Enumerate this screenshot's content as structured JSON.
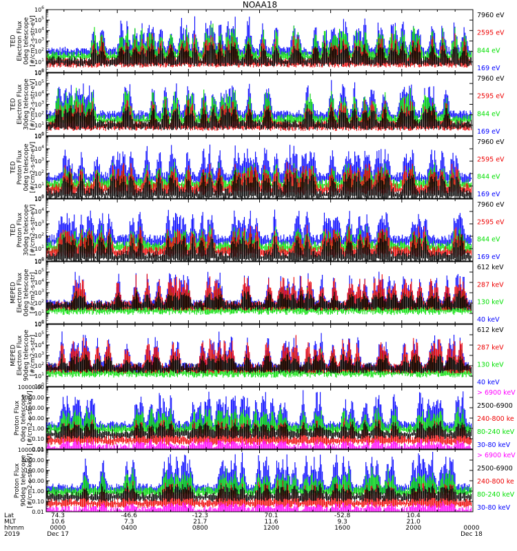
{
  "title": "NOAA18",
  "colors": {
    "blue": "#0000ff",
    "red": "#ee0000",
    "green": "#00e000",
    "black": "#000000",
    "magenta": "#ff00ff"
  },
  "chart_data": [
    {
      "type": "line",
      "ylabel": [
        "TED",
        "Electron Flux",
        "0deg telescope",
        "[#/cm2-s-str-eV]"
      ],
      "ylim": [
        1,
        1000000
      ],
      "yscale": "log",
      "ytick_labels": [
        "10^0",
        "10^1",
        "10^2",
        "10^3",
        "10^4",
        "10^5",
        "10^6"
      ],
      "series": [
        {
          "name": "7960 eV",
          "color": "#000000"
        },
        {
          "name": "2595 eV",
          "color": "#ee0000"
        },
        {
          "name": "844 eV",
          "color": "#00e000"
        },
        {
          "name": "169 eV",
          "color": "#0000ff"
        }
      ]
    },
    {
      "type": "line",
      "ylabel": [
        "TED",
        "Electron Flux",
        "30deg telescope",
        "[#/cm2-s-str-eV]"
      ],
      "ylim": [
        1,
        1000000
      ],
      "yscale": "log",
      "ytick_labels": [
        "10^0",
        "10^1",
        "10^2",
        "10^3",
        "10^4",
        "10^5",
        "10^6"
      ],
      "series": [
        {
          "name": "7960 eV",
          "color": "#000000"
        },
        {
          "name": "2595 eV",
          "color": "#ee0000"
        },
        {
          "name": "844 eV",
          "color": "#00e000"
        },
        {
          "name": "169 eV",
          "color": "#0000ff"
        }
      ]
    },
    {
      "type": "line",
      "ylabel": [
        "TED",
        "Proton Flux",
        "0deg telescope",
        "[#/cm2-s-str-eV]"
      ],
      "ylim": [
        1,
        100000
      ],
      "yscale": "log",
      "ytick_labels": [
        "10^0",
        "10^1",
        "10^2",
        "10^3",
        "10^4",
        "10^5"
      ],
      "series": [
        {
          "name": "7960 eV",
          "color": "#000000"
        },
        {
          "name": "2595 eV",
          "color": "#ee0000"
        },
        {
          "name": "844 eV",
          "color": "#00e000"
        },
        {
          "name": "169 eV",
          "color": "#0000ff"
        }
      ]
    },
    {
      "type": "line",
      "ylabel": [
        "TED",
        "Proton Flux",
        "30deg telescope",
        "[#/cm2-s-str-eV]"
      ],
      "ylim": [
        1,
        100000
      ],
      "yscale": "log",
      "ytick_labels": [
        "10^0",
        "10^1",
        "10^2",
        "10^3",
        "10^4",
        "10^5"
      ],
      "series": [
        {
          "name": "7960 eV",
          "color": "#000000"
        },
        {
          "name": "2595 eV",
          "color": "#ee0000"
        },
        {
          "name": "844 eV",
          "color": "#00e000"
        },
        {
          "name": "169 eV",
          "color": "#0000ff"
        }
      ]
    },
    {
      "type": "line",
      "ylabel": [
        "MEPED",
        "Electron Flux",
        "0deg telescope",
        "[#/cm2-s-str]"
      ],
      "ylim": [
        1,
        1000000
      ],
      "yscale": "log",
      "ytick_labels": [
        "10^0",
        "10^1",
        "10^2",
        "10^3",
        "10^4",
        "10^5",
        "10^6"
      ],
      "series": [
        {
          "name": "612 keV",
          "color": "#000000"
        },
        {
          "name": "287 keV",
          "color": "#ee0000"
        },
        {
          "name": "130 keV",
          "color": "#00e000"
        },
        {
          "name": "40 keV",
          "color": "#0000ff"
        }
      ]
    },
    {
      "type": "line",
      "ylabel": [
        "MEPED",
        "Electron Flux",
        "90deg telescope",
        "[#/cm2-s-str]"
      ],
      "ylim": [
        1,
        1000000
      ],
      "yscale": "log",
      "ytick_labels": [
        "10^0",
        "10^1",
        "10^2",
        "10^3",
        "10^4",
        "10^5",
        "10^6"
      ],
      "series": [
        {
          "name": "612 keV",
          "color": "#000000"
        },
        {
          "name": "287 keV",
          "color": "#ee0000"
        },
        {
          "name": "130 keV",
          "color": "#00e000"
        },
        {
          "name": "40 keV",
          "color": "#0000ff"
        }
      ]
    },
    {
      "type": "line",
      "ylabel": [
        "Proton Flux",
        "0deg telescope",
        "[#/cm2-s-str-keV]"
      ],
      "ylim": [
        0.01,
        10000
      ],
      "yscale": "log",
      "ytick_labels": [
        "0.01",
        "0.10",
        "1.00",
        "10.00",
        "100.00",
        "1000.00",
        "10000.00"
      ],
      "series": [
        {
          "name": "> 6900 keV",
          "color": "#ff00ff"
        },
        {
          "name": "2500-6900",
          "color": "#000000"
        },
        {
          "name": "240-800 ke",
          "color": "#ee0000"
        },
        {
          "name": "80-240 keV",
          "color": "#00e000"
        },
        {
          "name": "30-80 keV",
          "color": "#0000ff"
        }
      ]
    },
    {
      "type": "line",
      "ylabel": [
        "Proton Flux",
        "90deg telescope",
        "[#/cm2-s-str-keV]"
      ],
      "ylim": [
        0.01,
        10000
      ],
      "yscale": "log",
      "ytick_labels": [
        "0.01",
        "0.10",
        "1.00",
        "10.00",
        "100.00",
        "1000.00",
        "10000.00"
      ],
      "series": [
        {
          "name": "> 6900 keV",
          "color": "#ff00ff"
        },
        {
          "name": "2500-6900",
          "color": "#000000"
        },
        {
          "name": "240-800 ke",
          "color": "#ee0000"
        },
        {
          "name": "80-240 keV",
          "color": "#00e000"
        },
        {
          "name": "30-80 keV",
          "color": "#0000ff"
        }
      ]
    }
  ],
  "xaxis": {
    "row_labels": [
      "Lat",
      "MLT",
      "hhmm",
      "2019"
    ],
    "columns": [
      {
        "lat": "74.3",
        "mlt": "10.6",
        "hhmm": "0000",
        "date": "Dec 17"
      },
      {
        "lat": "-46.6",
        "mlt": "7.3",
        "hhmm": "0400",
        "date": ""
      },
      {
        "lat": "-12.3",
        "mlt": "21.7",
        "hhmm": "0800",
        "date": ""
      },
      {
        "lat": "70.1",
        "mlt": "11.6",
        "hhmm": "1200",
        "date": ""
      },
      {
        "lat": "-52.8",
        "mlt": "9.3",
        "hhmm": "1600",
        "date": ""
      },
      {
        "lat": "10.4",
        "mlt": "21.0",
        "hhmm": "2000",
        "date": ""
      },
      {
        "lat": "",
        "mlt": "",
        "hhmm": "0000",
        "date": "Dec 18"
      }
    ]
  }
}
